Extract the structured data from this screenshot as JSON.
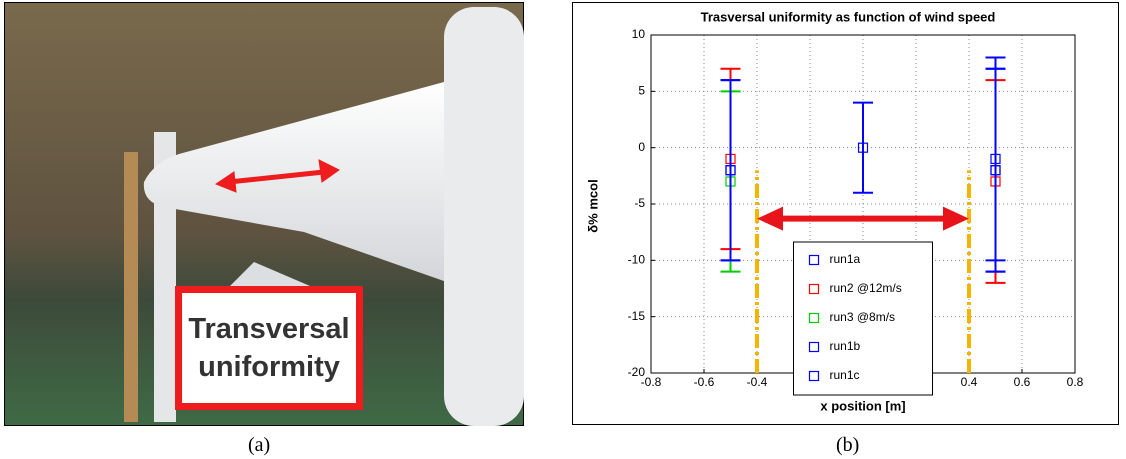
{
  "photo_label": "Transversal uniformity",
  "captions": [
    "(a)",
    "(b)"
  ],
  "chart_data": {
    "type": "errorbar",
    "title": "Trasversal uniformity as function of wind speed",
    "xlabel": "x position [m]",
    "ylabel": "δ% mcol",
    "xlim": [
      -0.8,
      0.8
    ],
    "xticks": [
      -0.8,
      -0.6,
      -0.4,
      -0.2,
      0,
      0.2,
      0.4,
      0.6,
      0.8
    ],
    "ylim": [
      -20,
      10
    ],
    "yticks": [
      -20,
      -15,
      -10,
      -5,
      0,
      5,
      10
    ],
    "grid": true,
    "legend": "lower center",
    "series": [
      {
        "name": "run1a",
        "color": "#0000ff",
        "x": [
          -0.5,
          0,
          0.5
        ],
        "values": [
          -2,
          0,
          -1
        ],
        "errors": [
          8,
          4,
          9
        ]
      },
      {
        "name": "run2 @12m/s",
        "color": "#ff0000",
        "x": [
          -0.5,
          0.5
        ],
        "values": [
          -1,
          -3
        ],
        "errors": [
          8,
          9
        ]
      },
      {
        "name": "run3 @8m/s",
        "color": "#00cc00",
        "x": [
          -0.5
        ],
        "values": [
          -3
        ],
        "errors": [
          8
        ]
      },
      {
        "name": "run1b",
        "color": "#0000ff",
        "x": [
          -0.5,
          0.5
        ],
        "values": [
          -2,
          -2
        ],
        "errors": [
          8,
          9
        ]
      },
      {
        "name": "run1c",
        "color": "#0000ff",
        "x": [
          0.5
        ],
        "values": [
          -2
        ],
        "errors": [
          9
        ]
      }
    ],
    "reference_lines": {
      "color": "#f5b400",
      "x": [
        -0.4,
        0.4
      ],
      "y": [
        -20,
        -2
      ]
    },
    "arrow": {
      "color": "#e8141b",
      "x": [
        -0.4,
        0.4
      ],
      "y": -6.3
    }
  }
}
